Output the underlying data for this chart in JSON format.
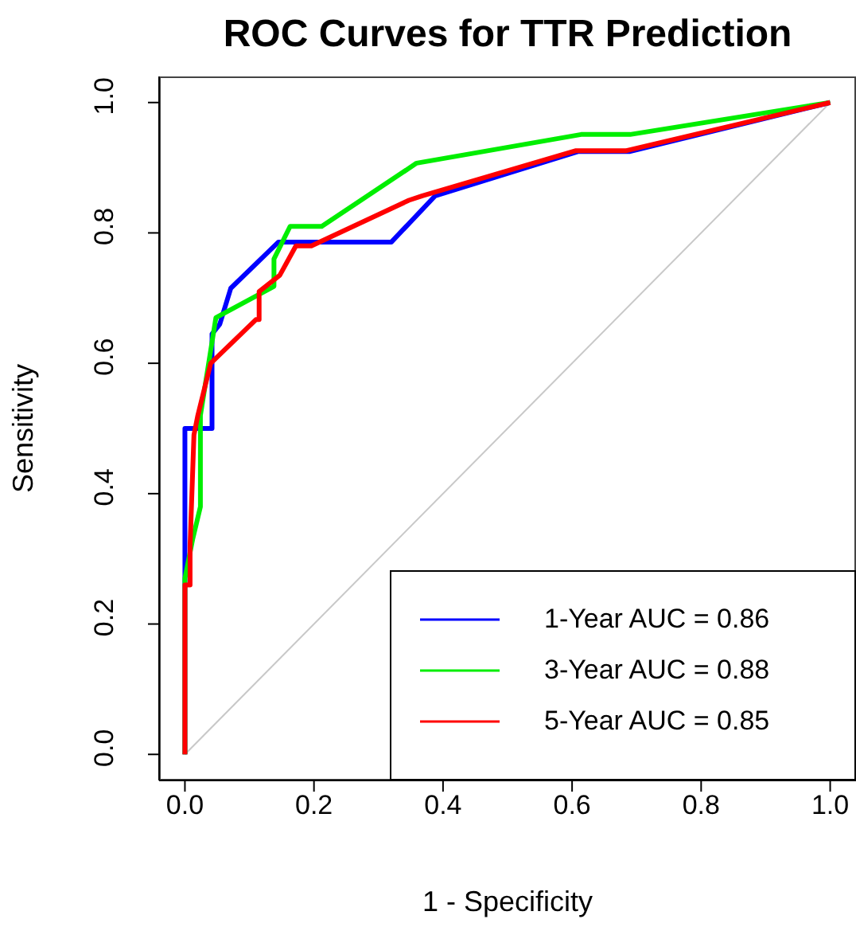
{
  "chart_data": {
    "type": "line",
    "title": "ROC Curves for TTR Prediction",
    "xlabel": "1 - Specificity",
    "ylabel": "Sensitivity",
    "xlim": [
      -0.04,
      1.04
    ],
    "ylim": [
      -0.04,
      1.04
    ],
    "xticks": [
      {
        "value": 0,
        "label": "0.0"
      },
      {
        "value": 0.2,
        "label": "0.2"
      },
      {
        "value": 0.4,
        "label": "0.4"
      },
      {
        "value": 0.6,
        "label": "0.6"
      },
      {
        "value": 0.8,
        "label": "0.8"
      },
      {
        "value": 1,
        "label": "1.0"
      }
    ],
    "yticks": [
      {
        "value": 0,
        "label": "0.0"
      },
      {
        "value": 0.2,
        "label": "0.2"
      },
      {
        "value": 0.4,
        "label": "0.4"
      },
      {
        "value": 0.6,
        "label": "0.6"
      },
      {
        "value": 0.8,
        "label": "0.8"
      },
      {
        "value": 1,
        "label": "1.0"
      }
    ],
    "grid": false,
    "legend": "bottom right",
    "marker": "none",
    "line_style": "solid",
    "series": [
      {
        "color": "#c8c8c8",
        "x": [
          0,
          1
        ],
        "values": [
          0,
          1
        ]
      },
      {
        "name": "1-Year AUC = 0.86",
        "color": "#0000ff",
        "x": [
          0,
          0,
          0,
          0.042,
          0.042,
          0.054,
          0.071,
          0.145,
          0.32,
          0.388,
          0.61,
          0.69,
          1
        ],
        "values": [
          0,
          0.34,
          0.5,
          0.5,
          0.645,
          0.66,
          0.715,
          0.786,
          0.786,
          0.857,
          0.925,
          0.925,
          1
        ]
      },
      {
        "name": "3-Year AUC = 0.88",
        "color": "#00ee00",
        "x": [
          0,
          0,
          0.012,
          0.024,
          0.024,
          0.048,
          0.138,
          0.138,
          0.163,
          0.212,
          0.359,
          0.614,
          0.69,
          1
        ],
        "values": [
          0,
          0.27,
          0.33,
          0.38,
          0.52,
          0.67,
          0.718,
          0.76,
          0.81,
          0.81,
          0.907,
          0.951,
          0.951,
          1
        ]
      },
      {
        "name": "5-Year AUC = 0.85",
        "color": "#ff0000",
        "x": [
          0,
          0,
          0.008,
          0.008,
          0.014,
          0.02,
          0.04,
          0.11,
          0.115,
          0.115,
          0.147,
          0.172,
          0.196,
          0.347,
          0.368,
          0.605,
          0.683,
          1
        ],
        "values": [
          0,
          0.26,
          0.26,
          0.32,
          0.49,
          0.52,
          0.6,
          0.667,
          0.667,
          0.71,
          0.735,
          0.78,
          0.78,
          0.85,
          0.857,
          0.926,
          0.926,
          1
        ]
      }
    ]
  }
}
